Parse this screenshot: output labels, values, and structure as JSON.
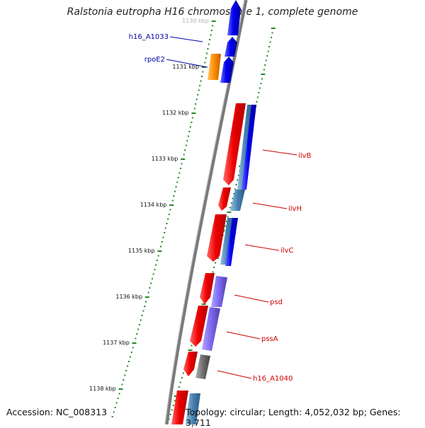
{
  "title": "Ralstonia eutropha H16 chromosome 1, complete genome",
  "footer": {
    "accession": "Accession: NC_008313",
    "topology": "Topology: circular; Length: 4,052,032 bp; Genes: 3,711"
  },
  "colors": {
    "backbone": "#8a8a8a",
    "tick": "#1f8a1f",
    "forward_gene": "#0000ee",
    "reverse_gene": "#ee0000",
    "orange_gene": "#ff8c00",
    "steelblue_gene": "#4682b4",
    "purple_gene": "#7b68ee",
    "gray_gene": "#6e6e6e",
    "label_blue": "#0000aa",
    "label_red": "#cc0000"
  },
  "kbp_labels": [
    {
      "kbp": 1130,
      "text": "1130 kbp"
    },
    {
      "kbp": 1131,
      "text": "1131 kbp"
    },
    {
      "kbp": 1132,
      "text": "1132 kbp"
    },
    {
      "kbp": 1133,
      "text": "1133 kbp"
    },
    {
      "kbp": 1134,
      "text": "1134 kbp"
    },
    {
      "kbp": 1135,
      "text": "1135 kbp"
    },
    {
      "kbp": 1136,
      "text": "1136 kbp"
    },
    {
      "kbp": 1137,
      "text": "1137 kbp"
    },
    {
      "kbp": 1138,
      "text": "1138 kbp"
    }
  ],
  "gene_labels": [
    {
      "text": "h16_A1033",
      "color": "label_blue"
    },
    {
      "text": "rpoE2",
      "color": "label_blue"
    },
    {
      "text": "ilvB",
      "color": "label_red"
    },
    {
      "text": "ilvH",
      "color": "label_red"
    },
    {
      "text": "ilvC",
      "color": "label_red"
    },
    {
      "text": "psd",
      "color": "label_red"
    },
    {
      "text": "pssA",
      "color": "label_red"
    },
    {
      "text": "h16_A1040",
      "color": "label_red"
    }
  ]
}
